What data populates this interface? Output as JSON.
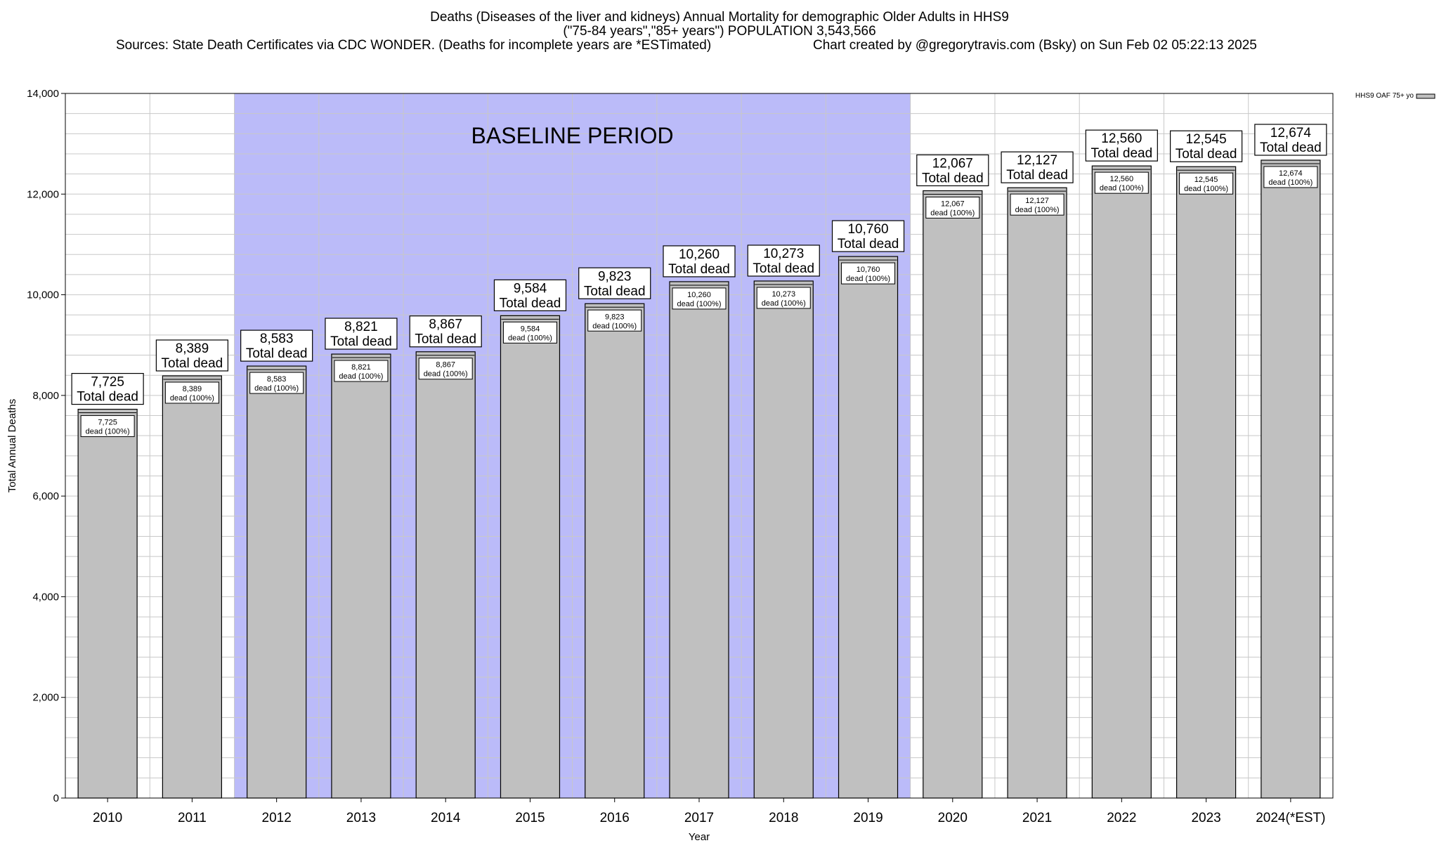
{
  "titles": {
    "line1": "Deaths (Diseases of the liver and kidneys) Annual Mortality for demographic Older Adults in HHS9",
    "line2": "(\"75-84 years\",\"85+ years\") POPULATION 3,543,566",
    "line3_left": "Sources: State Death Certificates via CDC WONDER. (Deaths for incomplete years are *ESTimated)",
    "line3_right": "Chart created by @gregorytravis.com (Bsky) on Sun Feb 02 05:22:13 2025"
  },
  "chart_data": {
    "type": "bar",
    "xlabel": "Year",
    "ylabel": "Total Annual Deaths",
    "ylim": [
      0,
      14000
    ],
    "yticks": [
      0,
      2000,
      4000,
      6000,
      8000,
      10000,
      12000,
      14000
    ],
    "ytick_labels": [
      "0",
      "2,000",
      "4,000",
      "6,000",
      "8,000",
      "10,000",
      "12,000",
      "14,000"
    ],
    "categories": [
      "2010",
      "2011",
      "2012",
      "2013",
      "2014",
      "2015",
      "2016",
      "2017",
      "2018",
      "2019",
      "2020",
      "2021",
      "2022",
      "2023",
      "2024(*EST)"
    ],
    "series": [
      {
        "name": "HHS9 OAF 75+ yo",
        "values": [
          7725,
          8389,
          8583,
          8821,
          8867,
          9584,
          9823,
          10260,
          10273,
          10760,
          12067,
          12127,
          12560,
          12545,
          12674
        ],
        "value_labels": [
          "7,725",
          "8,389",
          "8,583",
          "8,821",
          "8,867",
          "9,584",
          "9,823",
          "10,260",
          "10,273",
          "10,760",
          "12,067",
          "12,127",
          "12,560",
          "12,545",
          "12,674"
        ],
        "color": "#c0c0c0"
      }
    ],
    "top_label_suffix": "Total dead",
    "inner_label_suffix": "dead (100%)",
    "baseline_period": {
      "label": "BASELINE PERIOD",
      "from": "2012",
      "to": "2019",
      "color": "#bbbbf9"
    },
    "grid": true,
    "legend_position": "top-right"
  }
}
